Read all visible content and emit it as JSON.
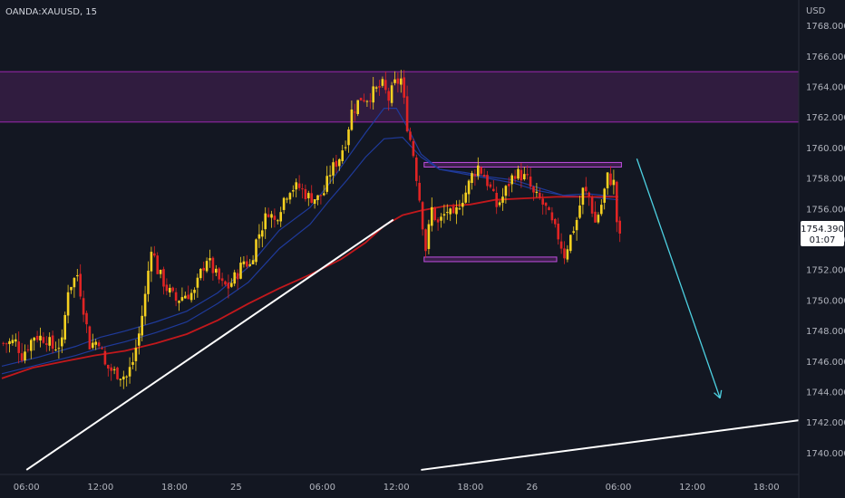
{
  "header": {
    "symbol": "OANDA:XAUUSD, 15",
    "currency": "USD"
  },
  "last_price": {
    "price": "1754.390",
    "countdown": "01:07",
    "value": 1754.39
  },
  "colors": {
    "background": "#131722",
    "candle_up": "#f5d020",
    "candle_down": "#e02424",
    "zone_fill": "#3b1f4a",
    "zone_border": "#9c27b0",
    "box_border": "#c04ee0",
    "ema_red": "#c2181c",
    "ema_blue": "#1f3a9a",
    "trendline": "#ffffff",
    "arrow": "#4dd0e1"
  },
  "chart_data": {
    "type": "candlestick",
    "y_axis": {
      "min": 1738.6,
      "max": 1769.7,
      "ticks": [
        "1740.000",
        "1742.000",
        "1744.000",
        "1746.000",
        "1748.000",
        "1750.000",
        "1752.000",
        "1754.000",
        "1756.000",
        "1758.000",
        "1760.000",
        "1762.000",
        "1764.000",
        "1766.000",
        "1768.000"
      ]
    },
    "x_axis": {
      "ticks": [
        {
          "label": "06:00",
          "pos": 8
        },
        {
          "label": "12:00",
          "pos": 32
        },
        {
          "label": "18:00",
          "pos": 56
        },
        {
          "label": "25",
          "pos": 76
        },
        {
          "label": "06:00",
          "pos": 104
        },
        {
          "label": "12:00",
          "pos": 128
        },
        {
          "label": "18:00",
          "pos": 152
        },
        {
          "label": "26",
          "pos": 172
        },
        {
          "label": "06:00",
          "pos": 200
        },
        {
          "label": "12:00",
          "pos": 224
        },
        {
          "label": "18:00",
          "pos": 248
        }
      ]
    },
    "candle_anchors": [
      [
        0,
        1747.2
      ],
      [
        4,
        1747.3
      ],
      [
        6,
        1746.4
      ],
      [
        10,
        1747.7
      ],
      [
        14,
        1747.5
      ],
      [
        16,
        1746.9
      ],
      [
        19,
        1747.2
      ],
      [
        21,
        1750.8
      ],
      [
        24,
        1751.7
      ],
      [
        26,
        1749.5
      ],
      [
        28,
        1747.1
      ],
      [
        31,
        1747.4
      ],
      [
        33,
        1745.7
      ],
      [
        36,
        1745.3
      ],
      [
        40,
        1745.0
      ],
      [
        42,
        1746.0
      ],
      [
        44,
        1747.8
      ],
      [
        46,
        1750.3
      ],
      [
        48,
        1753.6
      ],
      [
        50,
        1752.0
      ],
      [
        53,
        1750.8
      ],
      [
        56,
        1750.0
      ],
      [
        59,
        1750.4
      ],
      [
        62,
        1750.5
      ],
      [
        64,
        1751.8
      ],
      [
        66,
        1752.8
      ],
      [
        68,
        1752.0
      ],
      [
        71,
        1751.0
      ],
      [
        73,
        1750.9
      ],
      [
        76,
        1751.8
      ],
      [
        78,
        1752.6
      ],
      [
        80,
        1752.3
      ],
      [
        82,
        1753.9
      ],
      [
        86,
        1755.9
      ],
      [
        88,
        1755.2
      ],
      [
        91,
        1756.7
      ],
      [
        93,
        1757.4
      ],
      [
        96,
        1757.4
      ],
      [
        99,
        1756.8
      ],
      [
        102,
        1756.7
      ],
      [
        104,
        1757.1
      ],
      [
        106,
        1758.4
      ],
      [
        109,
        1759.4
      ],
      [
        111,
        1760.5
      ],
      [
        113,
        1762.4
      ],
      [
        116,
        1763.3
      ],
      [
        118,
        1763.3
      ],
      [
        121,
        1763.8
      ],
      [
        123,
        1764.1
      ],
      [
        125,
        1763.2
      ],
      [
        127,
        1764.2
      ],
      [
        129,
        1764.5
      ],
      [
        131,
        1761.5
      ],
      [
        133,
        1759.6
      ],
      [
        135,
        1756.7
      ],
      [
        137,
        1753.4
      ],
      [
        139,
        1756.0
      ],
      [
        141,
        1755.0
      ],
      [
        144,
        1755.9
      ],
      [
        146,
        1755.3
      ],
      [
        148,
        1756.4
      ],
      [
        150,
        1757.1
      ],
      [
        152,
        1758.2
      ],
      [
        154,
        1758.8
      ],
      [
        156,
        1758.2
      ],
      [
        158,
        1757.3
      ],
      [
        160,
        1756.2
      ],
      [
        162,
        1756.8
      ],
      [
        164,
        1757.7
      ],
      [
        166,
        1758.4
      ],
      [
        168,
        1758.2
      ],
      [
        170,
        1757.9
      ],
      [
        172,
        1756.9
      ],
      [
        174,
        1756.6
      ],
      [
        176,
        1756.0
      ],
      [
        178,
        1755.0
      ],
      [
        180,
        1754.2
      ],
      [
        182,
        1753.0
      ],
      [
        184,
        1754.2
      ],
      [
        186,
        1755.3
      ],
      [
        188,
        1757.2
      ],
      [
        190,
        1756.8
      ],
      [
        192,
        1755.1
      ],
      [
        194,
        1756.3
      ],
      [
        196,
        1758.1
      ],
      [
        198,
        1757.7
      ],
      [
        199,
        1755.2
      ],
      [
        200,
        1754.4
      ]
    ],
    "ema_red": [
      [
        0,
        1744.9
      ],
      [
        10,
        1745.6
      ],
      [
        20,
        1746.0
      ],
      [
        30,
        1746.4
      ],
      [
        40,
        1746.7
      ],
      [
        50,
        1747.2
      ],
      [
        60,
        1747.8
      ],
      [
        70,
        1748.7
      ],
      [
        80,
        1749.8
      ],
      [
        90,
        1750.8
      ],
      [
        100,
        1751.7
      ],
      [
        110,
        1752.7
      ],
      [
        118,
        1753.8
      ],
      [
        124,
        1754.9
      ],
      [
        130,
        1755.6
      ],
      [
        136,
        1755.9
      ],
      [
        144,
        1756.2
      ],
      [
        152,
        1756.3
      ],
      [
        160,
        1756.6
      ],
      [
        170,
        1756.7
      ],
      [
        180,
        1756.8
      ],
      [
        190,
        1756.8
      ],
      [
        200,
        1756.8
      ]
    ],
    "ema_blue_fast": [
      [
        0,
        1745.7
      ],
      [
        12,
        1746.3
      ],
      [
        24,
        1747.0
      ],
      [
        32,
        1747.6
      ],
      [
        40,
        1748.0
      ],
      [
        50,
        1748.6
      ],
      [
        60,
        1749.3
      ],
      [
        70,
        1750.5
      ],
      [
        80,
        1752.2
      ],
      [
        90,
        1754.6
      ],
      [
        100,
        1756.1
      ],
      [
        106,
        1757.6
      ],
      [
        112,
        1759.3
      ],
      [
        118,
        1761.0
      ],
      [
        124,
        1762.6
      ],
      [
        128,
        1762.6
      ],
      [
        132,
        1761.2
      ],
      [
        136,
        1759.6
      ],
      [
        142,
        1758.6
      ],
      [
        150,
        1758.4
      ],
      [
        158,
        1758.1
      ],
      [
        166,
        1757.9
      ],
      [
        174,
        1757.4
      ],
      [
        182,
        1756.9
      ],
      [
        190,
        1757.0
      ],
      [
        200,
        1756.8
      ]
    ],
    "ema_blue_slow": [
      [
        0,
        1745.2
      ],
      [
        12,
        1745.8
      ],
      [
        24,
        1746.4
      ],
      [
        32,
        1746.9
      ],
      [
        40,
        1747.3
      ],
      [
        50,
        1747.9
      ],
      [
        60,
        1748.6
      ],
      [
        70,
        1749.8
      ],
      [
        80,
        1751.2
      ],
      [
        90,
        1753.4
      ],
      [
        100,
        1755.0
      ],
      [
        106,
        1756.5
      ],
      [
        112,
        1757.9
      ],
      [
        118,
        1759.4
      ],
      [
        124,
        1760.6
      ],
      [
        130,
        1760.7
      ],
      [
        136,
        1759.4
      ],
      [
        142,
        1758.6
      ],
      [
        150,
        1758.3
      ],
      [
        158,
        1758.0
      ],
      [
        166,
        1757.7
      ],
      [
        174,
        1757.2
      ],
      [
        182,
        1756.9
      ],
      [
        190,
        1756.8
      ],
      [
        200,
        1756.6
      ]
    ],
    "resistance_zone": {
      "x1": -10,
      "x2": 268,
      "y_low": 1761.7,
      "y_high": 1765.0
    },
    "range_box_top": {
      "x1": 137,
      "x2": 201,
      "y_low": 1758.75,
      "y_high": 1759.05
    },
    "range_box_bottom": {
      "x1": 137,
      "x2": 180,
      "y_low": 1752.55,
      "y_high": 1752.85
    },
    "trendlines": [
      {
        "x1": 8,
        "y1": 1738.9,
        "x2": 127,
        "y2": 1755.3
      },
      {
        "x1": 136,
        "y1": 1738.9,
        "x2": 268,
        "y2": 1742.4
      }
    ],
    "projection_arrow": {
      "x1": 206,
      "x2": 233,
      "y1": 1759.3,
      "y2": 1743.6
    }
  }
}
